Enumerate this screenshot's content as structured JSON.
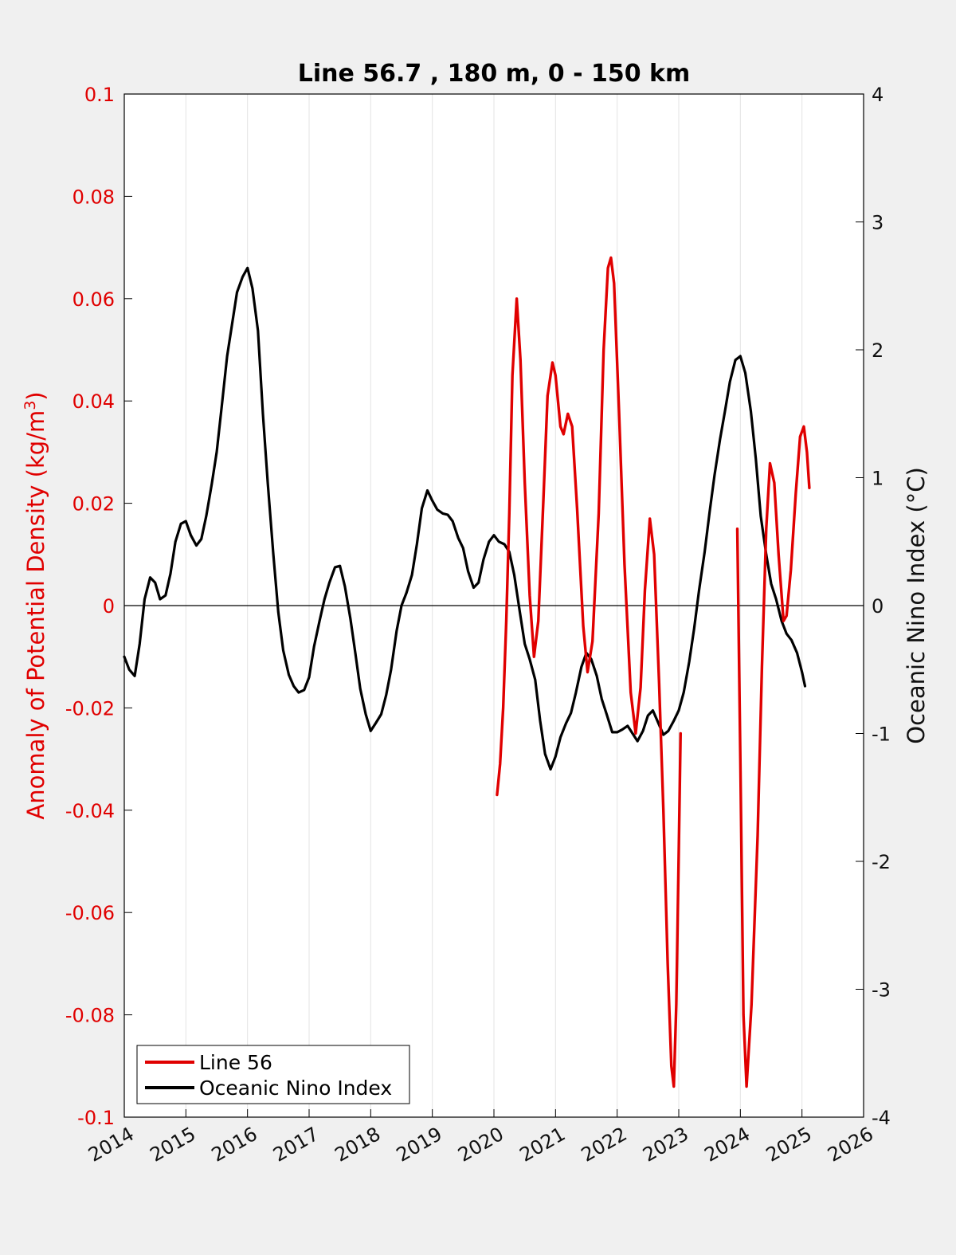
{
  "chart_data": {
    "type": "line",
    "title": "Line 56.7 , 180 m, 0 - 150 km",
    "ylabel_left": "Anomaly of Potential Density (kg/m",
    "ylabel_left_sup": "3",
    "ylabel_left_close": ")",
    "ylabel_right": "Oceanic Nino Index (°C)",
    "xlim": [
      2014,
      2026
    ],
    "ylim_left": [
      -0.1,
      0.1
    ],
    "ylim_right": [
      -4,
      4
    ],
    "x_ticks": [
      "2014",
      "2015",
      "2016",
      "2017",
      "2018",
      "2019",
      "2020",
      "2021",
      "2022",
      "2023",
      "2024",
      "2025",
      "2026"
    ],
    "y_left_ticks": [
      "0.1",
      "0.08",
      "0.06",
      "0.04",
      "0.02",
      "0",
      "-0.02",
      "-0.04",
      "-0.06",
      "-0.08",
      "-0.1"
    ],
    "y_right_ticks": [
      "4",
      "3",
      "2",
      "1",
      "0",
      "-1",
      "-2",
      "-3",
      "-4"
    ],
    "grid": "vertical",
    "legend_position": "bottom-left",
    "colors": {
      "line56": "#e00000",
      "oni": "#000000",
      "left_axis": "#e00000"
    },
    "series": [
      {
        "name": "Line 56",
        "axis": "left",
        "segments": [
          [
            [
              2020.05,
              -0.037
            ],
            [
              2020.1,
              -0.031
            ],
            [
              2020.15,
              -0.02
            ],
            [
              2020.2,
              -0.003
            ],
            [
              2020.25,
              0.018
            ],
            [
              2020.3,
              0.045
            ],
            [
              2020.37,
              0.06
            ],
            [
              2020.43,
              0.048
            ],
            [
              2020.5,
              0.024
            ],
            [
              2020.58,
              0.002
            ],
            [
              2020.65,
              -0.01
            ],
            [
              2020.72,
              -0.003
            ],
            [
              2020.8,
              0.02
            ],
            [
              2020.87,
              0.041
            ],
            [
              2020.95,
              0.0475
            ],
            [
              2021.0,
              0.045
            ],
            [
              2021.08,
              0.035
            ],
            [
              2021.13,
              0.0335
            ],
            [
              2021.2,
              0.0375
            ],
            [
              2021.27,
              0.035
            ],
            [
              2021.35,
              0.019
            ],
            [
              2021.45,
              -0.004
            ],
            [
              2021.52,
              -0.013
            ],
            [
              2021.6,
              -0.007
            ],
            [
              2021.7,
              0.018
            ],
            [
              2021.78,
              0.05
            ],
            [
              2021.85,
              0.066
            ],
            [
              2021.9,
              0.068
            ],
            [
              2021.95,
              0.063
            ],
            [
              2022.03,
              0.038
            ],
            [
              2022.12,
              0.008
            ],
            [
              2022.22,
              -0.017
            ],
            [
              2022.3,
              -0.025
            ],
            [
              2022.38,
              -0.016
            ],
            [
              2022.45,
              0.003
            ],
            [
              2022.53,
              0.017
            ],
            [
              2022.6,
              0.01
            ],
            [
              2022.68,
              -0.015
            ],
            [
              2022.75,
              -0.04
            ],
            [
              2022.82,
              -0.07
            ],
            [
              2022.88,
              -0.09
            ],
            [
              2022.92,
              -0.094
            ],
            [
              2022.96,
              -0.078
            ],
            [
              2023.0,
              -0.048
            ],
            [
              2023.03,
              -0.025
            ]
          ],
          [
            [
              2023.95,
              0.015
            ],
            [
              2024.0,
              -0.03
            ],
            [
              2024.05,
              -0.08
            ],
            [
              2024.1,
              -0.094
            ],
            [
              2024.18,
              -0.078
            ],
            [
              2024.28,
              -0.045
            ],
            [
              2024.35,
              -0.012
            ],
            [
              2024.42,
              0.015
            ],
            [
              2024.48,
              0.0278
            ],
            [
              2024.55,
              0.024
            ],
            [
              2024.62,
              0.01
            ],
            [
              2024.7,
              -0.003
            ],
            [
              2024.75,
              -0.002
            ],
            [
              2024.82,
              0.007
            ],
            [
              2024.9,
              0.022
            ],
            [
              2024.97,
              0.033
            ],
            [
              2025.03,
              0.035
            ],
            [
              2025.08,
              0.03
            ],
            [
              2025.12,
              0.023
            ]
          ]
        ]
      },
      {
        "name": "Oceanic Nino Index",
        "axis": "right",
        "points": [
          [
            2014.0,
            -0.4
          ],
          [
            2014.08,
            -0.5
          ],
          [
            2014.17,
            -0.55
          ],
          [
            2014.25,
            -0.3
          ],
          [
            2014.33,
            0.05
          ],
          [
            2014.42,
            0.22
          ],
          [
            2014.5,
            0.18
          ],
          [
            2014.58,
            0.05
          ],
          [
            2014.67,
            0.08
          ],
          [
            2014.75,
            0.25
          ],
          [
            2014.83,
            0.5
          ],
          [
            2014.92,
            0.64
          ],
          [
            2015.0,
            0.66
          ],
          [
            2015.08,
            0.55
          ],
          [
            2015.17,
            0.47
          ],
          [
            2015.25,
            0.52
          ],
          [
            2015.33,
            0.7
          ],
          [
            2015.42,
            0.95
          ],
          [
            2015.5,
            1.2
          ],
          [
            2015.58,
            1.55
          ],
          [
            2015.67,
            1.95
          ],
          [
            2015.75,
            2.2
          ],
          [
            2015.83,
            2.45
          ],
          [
            2015.92,
            2.57
          ],
          [
            2016.0,
            2.64
          ],
          [
            2016.08,
            2.48
          ],
          [
            2016.17,
            2.15
          ],
          [
            2016.25,
            1.5
          ],
          [
            2016.33,
            0.95
          ],
          [
            2016.42,
            0.4
          ],
          [
            2016.5,
            -0.05
          ],
          [
            2016.58,
            -0.35
          ],
          [
            2016.67,
            -0.54
          ],
          [
            2016.75,
            -0.63
          ],
          [
            2016.83,
            -0.68
          ],
          [
            2016.92,
            -0.66
          ],
          [
            2017.0,
            -0.56
          ],
          [
            2017.08,
            -0.32
          ],
          [
            2017.17,
            -0.12
          ],
          [
            2017.25,
            0.05
          ],
          [
            2017.33,
            0.18
          ],
          [
            2017.42,
            0.3
          ],
          [
            2017.5,
            0.31
          ],
          [
            2017.58,
            0.15
          ],
          [
            2017.67,
            -0.1
          ],
          [
            2017.75,
            -0.37
          ],
          [
            2017.83,
            -0.65
          ],
          [
            2017.92,
            -0.85
          ],
          [
            2018.0,
            -0.98
          ],
          [
            2018.08,
            -0.92
          ],
          [
            2018.17,
            -0.85
          ],
          [
            2018.25,
            -0.7
          ],
          [
            2018.33,
            -0.5
          ],
          [
            2018.42,
            -0.2
          ],
          [
            2018.5,
            0.0
          ],
          [
            2018.58,
            0.1
          ],
          [
            2018.67,
            0.24
          ],
          [
            2018.75,
            0.48
          ],
          [
            2018.83,
            0.76
          ],
          [
            2018.92,
            0.9
          ],
          [
            2019.0,
            0.82
          ],
          [
            2019.08,
            0.75
          ],
          [
            2019.17,
            0.72
          ],
          [
            2019.25,
            0.71
          ],
          [
            2019.33,
            0.66
          ],
          [
            2019.42,
            0.53
          ],
          [
            2019.5,
            0.45
          ],
          [
            2019.58,
            0.27
          ],
          [
            2019.67,
            0.14
          ],
          [
            2019.75,
            0.18
          ],
          [
            2019.83,
            0.36
          ],
          [
            2019.92,
            0.5
          ],
          [
            2020.0,
            0.55
          ],
          [
            2020.08,
            0.5
          ],
          [
            2020.17,
            0.48
          ],
          [
            2020.25,
            0.42
          ],
          [
            2020.33,
            0.24
          ],
          [
            2020.42,
            -0.05
          ],
          [
            2020.5,
            -0.3
          ],
          [
            2020.58,
            -0.42
          ],
          [
            2020.67,
            -0.58
          ],
          [
            2020.75,
            -0.9
          ],
          [
            2020.83,
            -1.16
          ],
          [
            2020.92,
            -1.28
          ],
          [
            2021.0,
            -1.18
          ],
          [
            2021.08,
            -1.03
          ],
          [
            2021.17,
            -0.92
          ],
          [
            2021.25,
            -0.84
          ],
          [
            2021.33,
            -0.68
          ],
          [
            2021.42,
            -0.48
          ],
          [
            2021.5,
            -0.37
          ],
          [
            2021.58,
            -0.42
          ],
          [
            2021.67,
            -0.55
          ],
          [
            2021.75,
            -0.73
          ],
          [
            2021.83,
            -0.85
          ],
          [
            2021.92,
            -0.99
          ],
          [
            2022.0,
            -0.99
          ],
          [
            2022.08,
            -0.97
          ],
          [
            2022.17,
            -0.94
          ],
          [
            2022.25,
            -1.0
          ],
          [
            2022.33,
            -1.06
          ],
          [
            2022.42,
            -0.98
          ],
          [
            2022.5,
            -0.86
          ],
          [
            2022.58,
            -0.82
          ],
          [
            2022.67,
            -0.92
          ],
          [
            2022.75,
            -1.01
          ],
          [
            2022.83,
            -0.98
          ],
          [
            2022.92,
            -0.9
          ],
          [
            2023.0,
            -0.82
          ],
          [
            2023.08,
            -0.68
          ],
          [
            2023.17,
            -0.44
          ],
          [
            2023.25,
            -0.18
          ],
          [
            2023.33,
            0.12
          ],
          [
            2023.42,
            0.42
          ],
          [
            2023.5,
            0.73
          ],
          [
            2023.58,
            1.02
          ],
          [
            2023.67,
            1.3
          ],
          [
            2023.75,
            1.52
          ],
          [
            2023.83,
            1.75
          ],
          [
            2023.92,
            1.92
          ],
          [
            2024.0,
            1.95
          ],
          [
            2024.08,
            1.82
          ],
          [
            2024.17,
            1.52
          ],
          [
            2024.25,
            1.15
          ],
          [
            2024.33,
            0.7
          ],
          [
            2024.42,
            0.4
          ],
          [
            2024.5,
            0.17
          ],
          [
            2024.58,
            0.05
          ],
          [
            2024.67,
            -0.12
          ],
          [
            2024.75,
            -0.22
          ],
          [
            2024.83,
            -0.27
          ],
          [
            2024.92,
            -0.37
          ],
          [
            2025.0,
            -0.52
          ],
          [
            2025.05,
            -0.63
          ]
        ]
      }
    ]
  }
}
